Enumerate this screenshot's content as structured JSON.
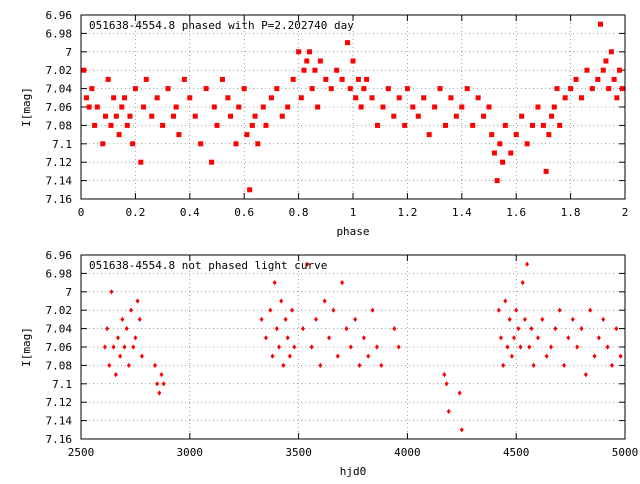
{
  "chart_data": [
    {
      "type": "scatter",
      "title": "051638-4554.8 phased with P=2.202740 day",
      "xlabel": "phase",
      "ylabel": "I[mag]",
      "xlim": [
        0,
        2
      ],
      "ylim": [
        6.96,
        7.16
      ],
      "y_inverted": true,
      "grid": true,
      "x_ticks": [
        "0",
        "0.2",
        "0.4",
        "0.6",
        "0.8",
        "1",
        "1.2",
        "1.4",
        "1.6",
        "1.8",
        "2"
      ],
      "y_ticks": [
        "6.96",
        "6.98",
        "7",
        "7.02",
        "7.04",
        "7.06",
        "7.08",
        "7.1",
        "7.12",
        "7.14",
        "7.16"
      ],
      "marker": "square",
      "color": "#ff0000",
      "series": [
        {
          "x": [
            0.01,
            0.02,
            0.03,
            0.04,
            0.05,
            0.06,
            0.08,
            0.09,
            0.1,
            0.11,
            0.12,
            0.13,
            0.14,
            0.15,
            0.16,
            0.17,
            0.18,
            0.19,
            0.2,
            0.22,
            0.23,
            0.24,
            0.26,
            0.28,
            0.3,
            0.32,
            0.34,
            0.35,
            0.36,
            0.38,
            0.4,
            0.42,
            0.44,
            0.46,
            0.48,
            0.49,
            0.5,
            0.52,
            0.54,
            0.55,
            0.57,
            0.58,
            0.6,
            0.61,
            0.62,
            0.63,
            0.64,
            0.65,
            0.67,
            0.68,
            0.7,
            0.72,
            0.74,
            0.76,
            0.78,
            0.8,
            0.81,
            0.82,
            0.83,
            0.84,
            0.85,
            0.86,
            0.87,
            0.88,
            0.9,
            0.92,
            0.94,
            0.96,
            0.98,
            0.99,
            1.0,
            1.01,
            1.02,
            1.03,
            1.04,
            1.05,
            1.07,
            1.09,
            1.11,
            1.13,
            1.15,
            1.17,
            1.19,
            1.2,
            1.22,
            1.24,
            1.26,
            1.28,
            1.3,
            1.32,
            1.34,
            1.36,
            1.38,
            1.4,
            1.42,
            1.44,
            1.46,
            1.48,
            1.5,
            1.51,
            1.52,
            1.53,
            1.54,
            1.55,
            1.56,
            1.58,
            1.6,
            1.62,
            1.64,
            1.66,
            1.68,
            1.7,
            1.71,
            1.72,
            1.73,
            1.74,
            1.75,
            1.76,
            1.78,
            1.8,
            1.82,
            1.84,
            1.86,
            1.88,
            1.9,
            1.91,
            1.92,
            1.93,
            1.94,
            1.95,
            1.96,
            1.97,
            1.98,
            1.99
          ],
          "y": [
            7.02,
            7.05,
            7.06,
            7.04,
            7.08,
            7.06,
            7.1,
            7.07,
            7.03,
            7.08,
            7.05,
            7.07,
            7.09,
            7.06,
            7.05,
            7.08,
            7.07,
            7.1,
            7.04,
            7.12,
            7.06,
            7.03,
            7.07,
            7.05,
            7.08,
            7.04,
            7.07,
            7.06,
            7.09,
            7.03,
            7.05,
            7.07,
            7.1,
            7.04,
            7.12,
            7.06,
            7.08,
            7.03,
            7.05,
            7.07,
            7.1,
            7.06,
            7.04,
            7.09,
            7.15,
            7.08,
            7.07,
            7.1,
            7.06,
            7.08,
            7.05,
            7.04,
            7.07,
            7.06,
            7.03,
            7.0,
            7.05,
            7.02,
            7.01,
            7.0,
            7.04,
            7.02,
            7.06,
            7.01,
            7.03,
            7.04,
            7.02,
            7.03,
            6.99,
            7.04,
            7.01,
            7.05,
            7.03,
            7.06,
            7.04,
            7.03,
            7.05,
            7.08,
            7.06,
            7.04,
            7.07,
            7.05,
            7.08,
            7.04,
            7.06,
            7.07,
            7.05,
            7.09,
            7.06,
            7.04,
            7.08,
            7.05,
            7.07,
            7.06,
            7.04,
            7.08,
            7.05,
            7.07,
            7.06,
            7.09,
            7.11,
            7.14,
            7.1,
            7.12,
            7.08,
            7.11,
            7.09,
            7.07,
            7.1,
            7.08,
            7.06,
            7.08,
            7.13,
            7.09,
            7.07,
            7.06,
            7.04,
            7.08,
            7.05,
            7.04,
            7.03,
            7.05,
            7.02,
            7.04,
            7.03,
            6.97,
            7.02,
            7.01,
            7.04,
            7.0,
            7.03,
            7.05,
            7.02,
            7.04
          ]
        }
      ]
    },
    {
      "type": "scatter",
      "title": "051638-4554.8 not phased light curve",
      "xlabel": "hjd0",
      "ylabel": "I[mag]",
      "xlim": [
        2500,
        5000
      ],
      "ylim": [
        6.96,
        7.16
      ],
      "y_inverted": true,
      "grid": true,
      "x_ticks": [
        "2500",
        "3000",
        "3500",
        "4000",
        "4500",
        "5000"
      ],
      "y_ticks": [
        "6.96",
        "6.98",
        "7",
        "7.02",
        "7.04",
        "7.06",
        "7.08",
        "7.1",
        "7.12",
        "7.14",
        "7.16"
      ],
      "marker": "diamond",
      "color": "#ff0000",
      "series": [
        {
          "x": [
            2610,
            2620,
            2630,
            2640,
            2650,
            2660,
            2670,
            2680,
            2690,
            2700,
            2710,
            2720,
            2730,
            2740,
            2750,
            2760,
            2770,
            2780,
            2840,
            2850,
            2860,
            2870,
            2880,
            3330,
            3350,
            3370,
            3380,
            3390,
            3400,
            3410,
            3420,
            3430,
            3440,
            3450,
            3460,
            3470,
            3480,
            3520,
            3540,
            3560,
            3580,
            3600,
            3620,
            3640,
            3660,
            3680,
            3700,
            3720,
            3740,
            3760,
            3780,
            3800,
            3820,
            3840,
            3860,
            3880,
            3940,
            3960,
            4170,
            4180,
            4190,
            4240,
            4250,
            4420,
            4430,
            4440,
            4450,
            4460,
            4470,
            4480,
            4490,
            4500,
            4510,
            4520,
            4530,
            4540,
            4550,
            4560,
            4570,
            4580,
            4600,
            4620,
            4640,
            4660,
            4680,
            4700,
            4720,
            4740,
            4760,
            4780,
            4800,
            4820,
            4840,
            4860,
            4880,
            4900,
            4920,
            4940,
            4960,
            4980
          ],
          "y": [
            7.06,
            7.04,
            7.08,
            7.0,
            7.06,
            7.09,
            7.05,
            7.07,
            7.03,
            7.06,
            7.04,
            7.08,
            7.02,
            7.06,
            7.05,
            7.01,
            7.03,
            7.07,
            7.08,
            7.1,
            7.11,
            7.09,
            7.1,
            7.03,
            7.05,
            7.02,
            7.07,
            6.99,
            7.04,
            7.06,
            7.01,
            7.08,
            7.03,
            7.05,
            7.07,
            7.02,
            7.06,
            7.04,
            6.97,
            7.06,
            7.03,
            7.08,
            7.01,
            7.05,
            7.02,
            7.07,
            6.99,
            7.04,
            7.06,
            7.03,
            7.08,
            7.05,
            7.07,
            7.02,
            7.06,
            7.08,
            7.04,
            7.06,
            7.09,
            7.1,
            7.13,
            7.11,
            7.15,
            7.02,
            7.05,
            7.08,
            7.01,
            7.06,
            7.03,
            7.07,
            7.05,
            7.02,
            7.04,
            7.06,
            6.99,
            7.03,
            6.97,
            7.06,
            7.04,
            7.08,
            7.05,
            7.03,
            7.07,
            7.06,
            7.04,
            7.02,
            7.08,
            7.05,
            7.03,
            7.06,
            7.04,
            7.09,
            7.02,
            7.07,
            7.05,
            7.03,
            7.06,
            7.08,
            7.04,
            7.07
          ]
        }
      ]
    }
  ]
}
